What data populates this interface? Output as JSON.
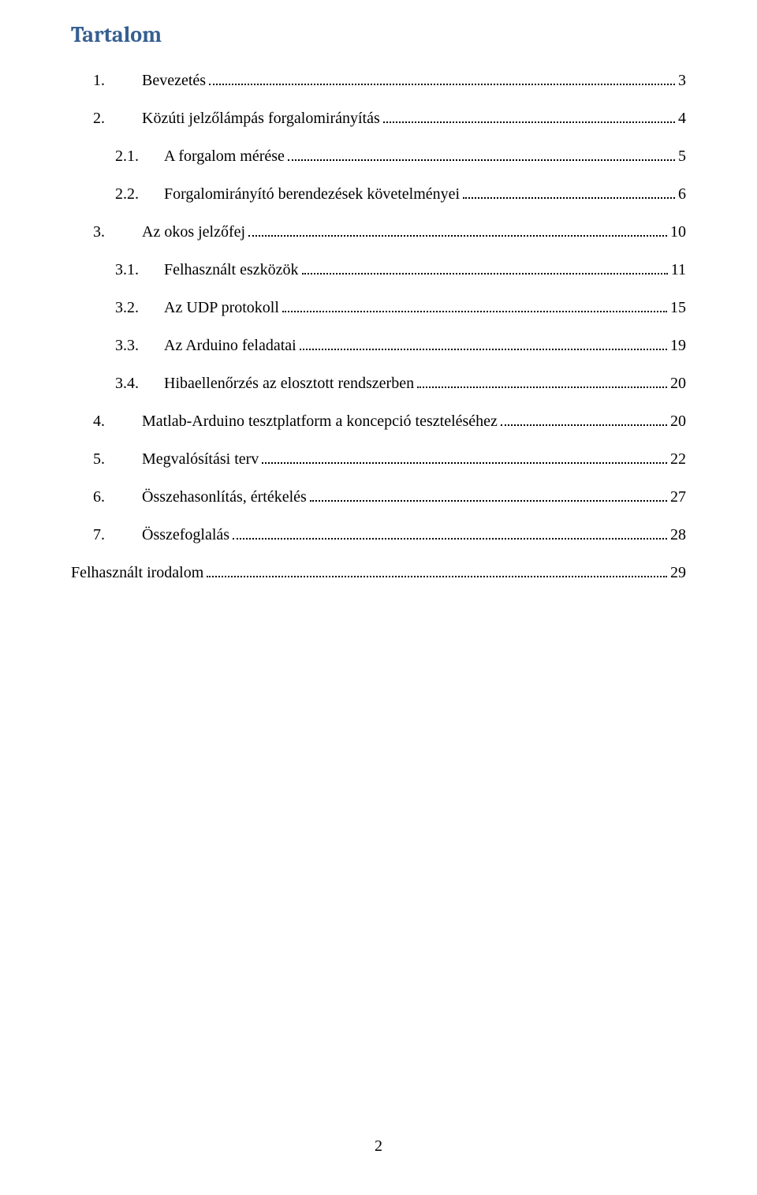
{
  "title": "Tartalom",
  "page_number": "2",
  "colors": {
    "title_color": "#365f91",
    "text_color": "#000000",
    "background": "#ffffff",
    "dot_color": "#000000"
  },
  "typography": {
    "title_font": "Cambria",
    "title_fontsize_pt": 21,
    "title_weight": "bold",
    "body_font": "Times New Roman",
    "body_fontsize_pt": 15,
    "line_height": 2.4
  },
  "entries": [
    {
      "level": 1,
      "num": "1.",
      "text": "Bevezetés",
      "page": "3"
    },
    {
      "level": 1,
      "num": "2.",
      "text": "Közúti jelzőlámpás forgalomirányítás",
      "page": "4"
    },
    {
      "level": 2,
      "num": "2.1.",
      "text": "A forgalom mérése",
      "page": "5"
    },
    {
      "level": 2,
      "num": "2.2.",
      "text": "Forgalomirányító berendezések követelményei",
      "page": "6"
    },
    {
      "level": 1,
      "num": "3.",
      "text": "Az okos jelzőfej",
      "page": "10"
    },
    {
      "level": 2,
      "num": "3.1.",
      "text": "Felhasznált eszközök",
      "page": "11"
    },
    {
      "level": 2,
      "num": "3.2.",
      "text": "Az UDP protokoll",
      "page": "15"
    },
    {
      "level": 2,
      "num": "3.3.",
      "text": "Az Arduino feladatai",
      "page": "19"
    },
    {
      "level": 2,
      "num": "3.4.",
      "text": "Hibaellenőrzés az elosztott rendszerben",
      "page": "20"
    },
    {
      "level": 1,
      "num": "4.",
      "text": "Matlab-Arduino tesztplatform a koncepció teszteléséhez",
      "page": "20"
    },
    {
      "level": 1,
      "num": "5.",
      "text": "Megvalósítási terv",
      "page": "22"
    },
    {
      "level": 1,
      "num": "6.",
      "text": "Összehasonlítás, értékelés",
      "page": "27"
    },
    {
      "level": 1,
      "num": "7.",
      "text": "Összefoglalás",
      "page": "28"
    },
    {
      "level": 0,
      "num": "",
      "text": "Felhasznált irodalom",
      "page": "29"
    }
  ]
}
